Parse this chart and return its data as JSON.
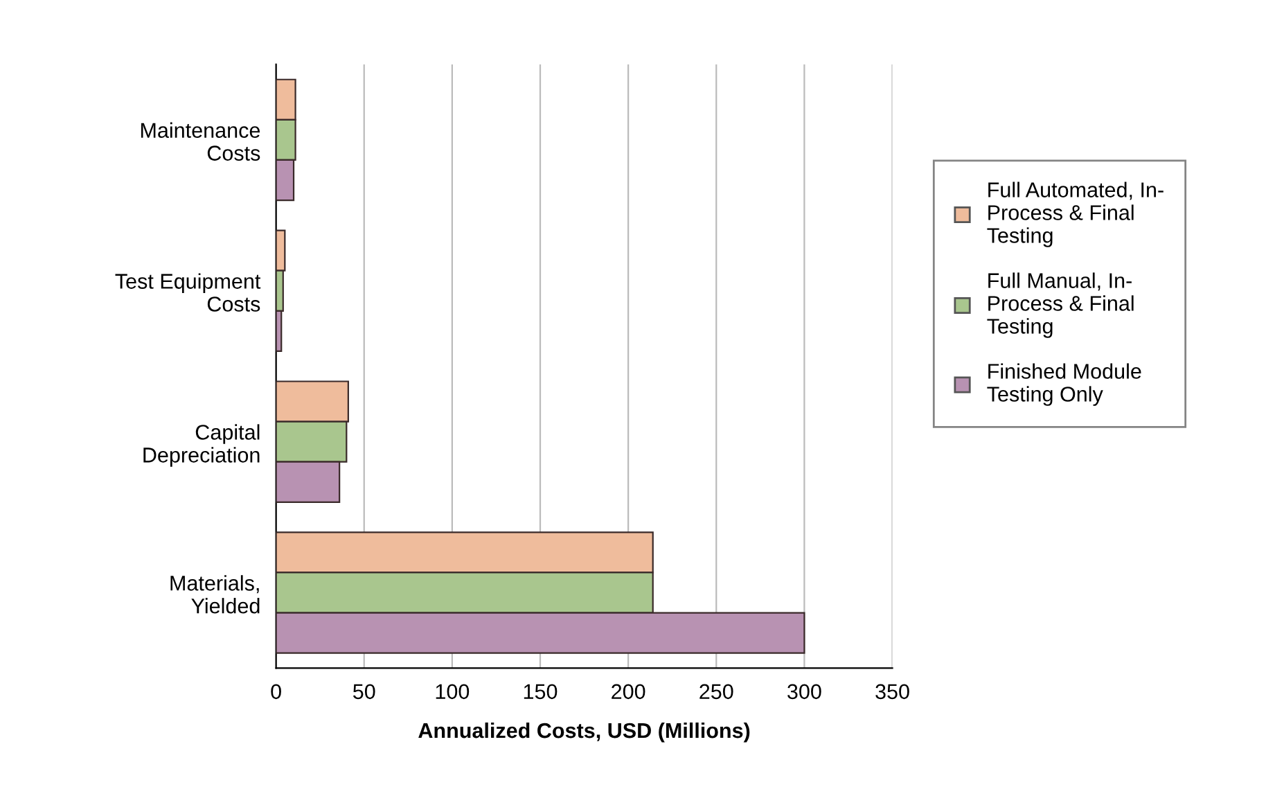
{
  "chart_data": {
    "type": "bar",
    "orientation": "horizontal",
    "categories": [
      "Maintenance\nCosts",
      "Test Equipment\nCosts",
      "Capital\nDepreciation",
      "Materials,\nYielded"
    ],
    "series": [
      {
        "name": "Full Automated, In-\nProcess & Final\nTesting",
        "color": "#efbc9c",
        "values": [
          11,
          5,
          41,
          214
        ]
      },
      {
        "name": "Full Manual, In-\nProcess & Final\nTesting",
        "color": "#a9c68e",
        "values": [
          11,
          4,
          40,
          214
        ]
      },
      {
        "name": "Finished Module\nTesting Only",
        "color": "#b892b2",
        "values": [
          10,
          3,
          36,
          300
        ]
      }
    ],
    "xlabel": "Annualized Costs, USD (Millions)",
    "xlim": [
      0,
      350
    ],
    "xticks": [
      0,
      50,
      100,
      150,
      200,
      250,
      300,
      350
    ],
    "grid": "x",
    "legend": "right"
  }
}
